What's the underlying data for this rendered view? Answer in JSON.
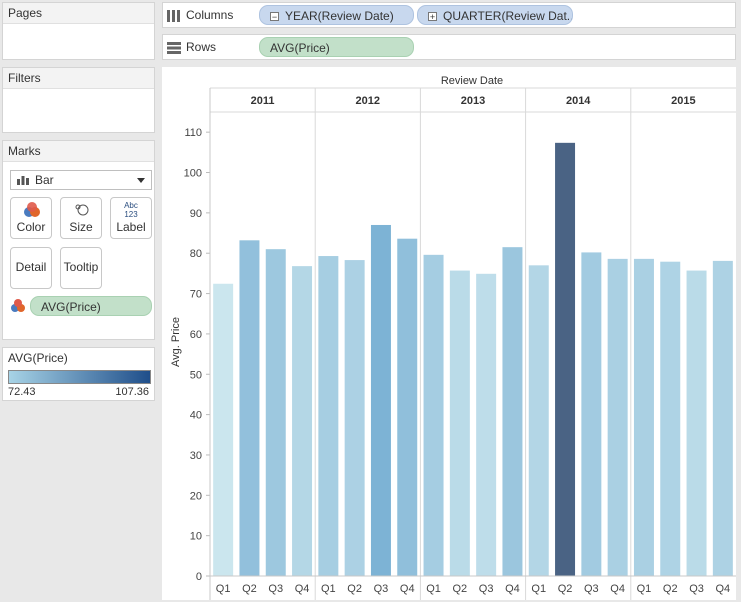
{
  "pages": {
    "title": "Pages"
  },
  "filters": {
    "title": "Filters"
  },
  "marks": {
    "title": "Marks",
    "mark_type": "Bar",
    "buttons": {
      "color": "Color",
      "size": "Size",
      "label": "Label",
      "label_icon": "Abc\n123",
      "detail": "Detail",
      "tooltip": "Tooltip"
    },
    "color_field": "AVG(Price)"
  },
  "legend": {
    "title": "AVG(Price)",
    "min_label": "72.43",
    "max_label": "107.36",
    "colors": [
      "#a7d3e6",
      "#1f4e8a"
    ]
  },
  "columns_shelf": {
    "label": "Columns",
    "pills": [
      "YEAR(Review Date)",
      "QUARTER(Review Dat.."
    ]
  },
  "rows_shelf": {
    "label": "Rows",
    "pills": [
      "AVG(Price)"
    ]
  },
  "chart_data": {
    "type": "bar",
    "title": "Review Date",
    "ylabel": "Avg. Price",
    "ylim": [
      0,
      115
    ],
    "yticks": [
      0,
      10,
      20,
      30,
      40,
      50,
      60,
      70,
      80,
      90,
      100,
      110
    ],
    "groups": [
      "2011",
      "2012",
      "2013",
      "2014",
      "2015"
    ],
    "categories": [
      "Q1",
      "Q2",
      "Q3",
      "Q4"
    ],
    "values": [
      [
        72.43,
        83.2,
        81.0,
        76.8
      ],
      [
        79.3,
        78.3,
        87.0,
        83.6
      ],
      [
        79.6,
        75.7,
        74.9,
        81.5
      ],
      [
        77.0,
        107.36,
        80.2,
        78.6
      ],
      [
        78.6,
        77.9,
        75.7,
        78.1
      ]
    ],
    "color_scale": {
      "min": 72.43,
      "max": 107.36,
      "low_color": "#cbe6ee",
      "mid_color": "#6ea9d0",
      "high_color": "#4a6384"
    }
  }
}
